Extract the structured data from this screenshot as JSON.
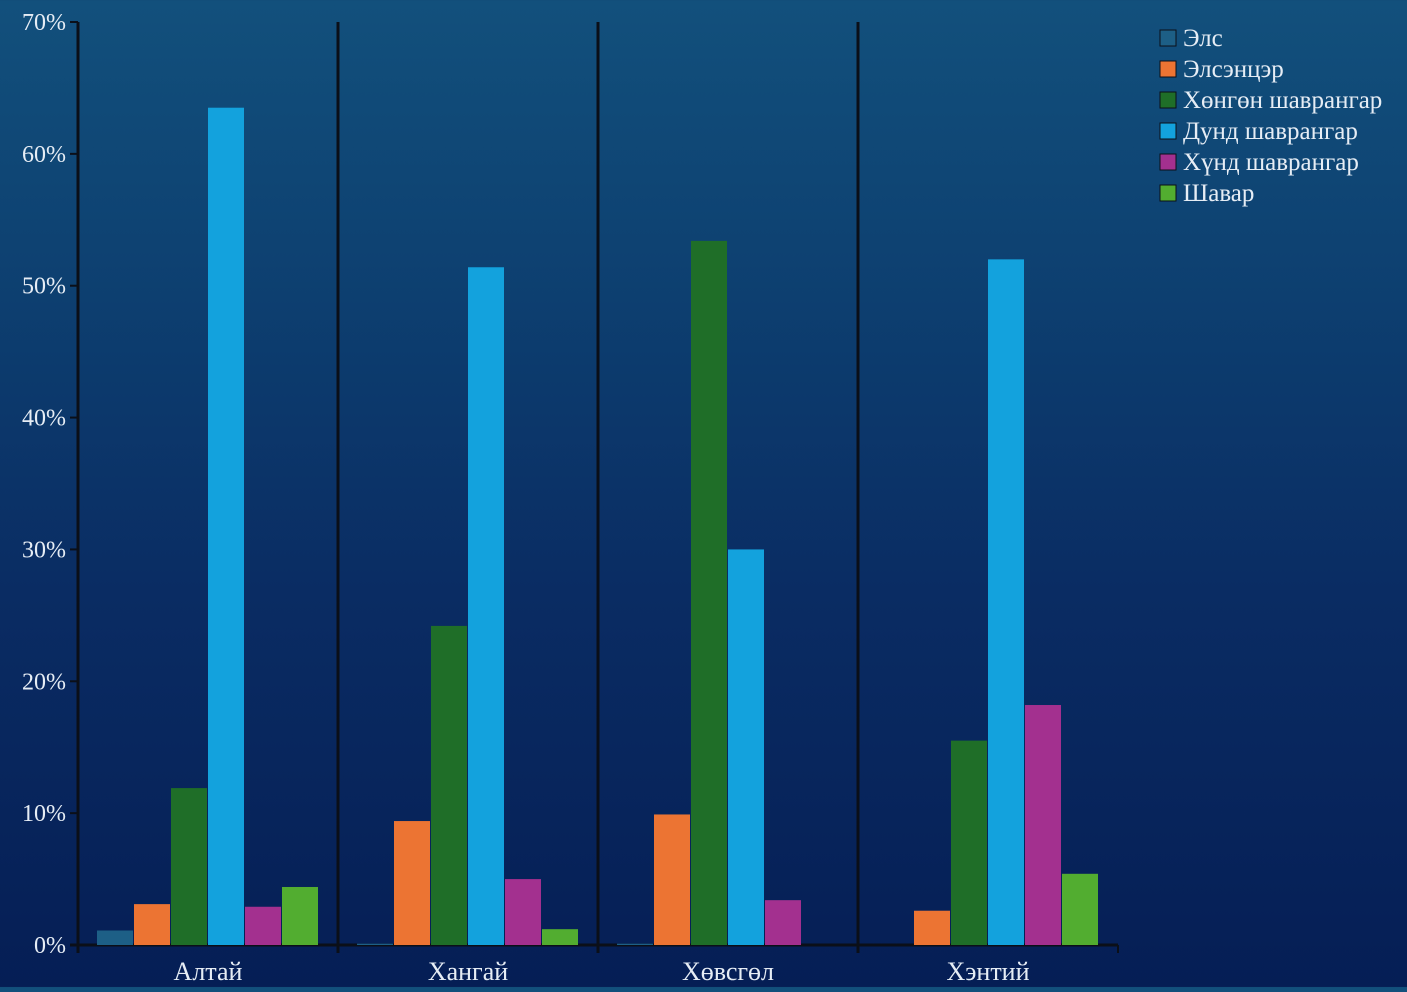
{
  "chart_data": {
    "type": "bar",
    "categories": [
      "Алтай",
      "Хангай",
      "Хөвсгөл",
      "Хэнтий"
    ],
    "series": [
      {
        "name": "Элс",
        "color": "#1d5f86",
        "values": [
          1.1,
          0.1,
          0.1,
          0.0
        ]
      },
      {
        "name": "Элсэнцэр",
        "color": "#ec7433",
        "values": [
          3.1,
          9.4,
          9.9,
          2.6
        ]
      },
      {
        "name": "Хөнгөн шаврангар",
        "color": "#1f6e28",
        "values": [
          11.9,
          24.2,
          53.4,
          15.5
        ]
      },
      {
        "name": "Дунд шаврангар",
        "color": "#13a2dd",
        "values": [
          63.5,
          51.4,
          30.0,
          52.0
        ]
      },
      {
        "name": "Хүнд шаврангар",
        "color": "#a3308f",
        "values": [
          2.9,
          5.0,
          3.4,
          18.2
        ]
      },
      {
        "name": "Шавар",
        "color": "#52ad30",
        "values": [
          4.4,
          1.2,
          0.0,
          5.4
        ]
      }
    ],
    "ylim": [
      0,
      70
    ],
    "yticks": [
      "0%",
      "10%",
      "20%",
      "30%",
      "40%",
      "50%",
      "60%",
      "70%"
    ],
    "title": "",
    "xlabel": "",
    "ylabel": "",
    "legend_position": "top-right",
    "grid": false
  }
}
